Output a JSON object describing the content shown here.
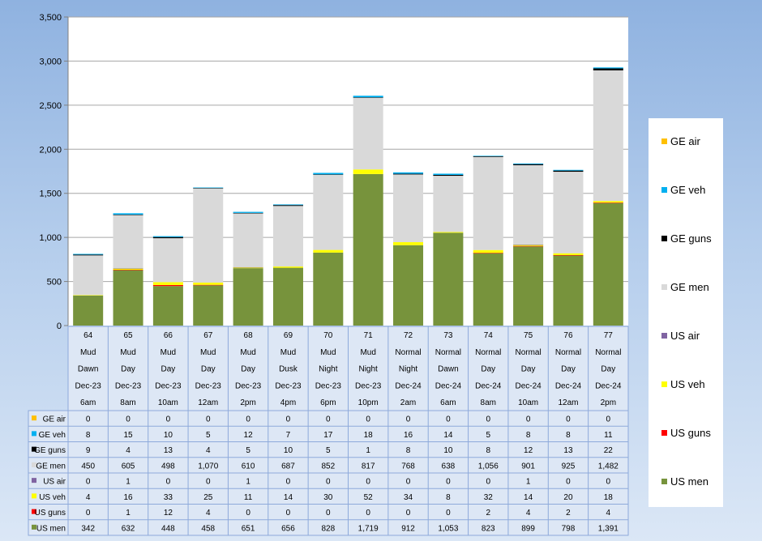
{
  "chart_data": {
    "type": "bar",
    "stacked": true,
    "ylim": [
      0,
      3500
    ],
    "yticks": [
      "0",
      "500",
      "1,000",
      "1,500",
      "2,000",
      "2,500",
      "3,000",
      "3,500"
    ],
    "grid": true,
    "legend_position": "right",
    "categories": [
      {
        "turn": "64",
        "ground": "Mud",
        "light": "Dawn",
        "date": "Dec-23",
        "time": "6am"
      },
      {
        "turn": "65",
        "ground": "Mud",
        "light": "Day",
        "date": "Dec-23",
        "time": "8am"
      },
      {
        "turn": "66",
        "ground": "Mud",
        "light": "Day",
        "date": "Dec-23",
        "time": "10am"
      },
      {
        "turn": "67",
        "ground": "Mud",
        "light": "Day",
        "date": "Dec-23",
        "time": "12am"
      },
      {
        "turn": "68",
        "ground": "Mud",
        "light": "Day",
        "date": "Dec-23",
        "time": "2pm"
      },
      {
        "turn": "69",
        "ground": "Mud",
        "light": "Dusk",
        "date": "Dec-23",
        "time": "4pm"
      },
      {
        "turn": "70",
        "ground": "Mud",
        "light": "Night",
        "date": "Dec-23",
        "time": "6pm"
      },
      {
        "turn": "71",
        "ground": "Mud",
        "light": "Night",
        "date": "Dec-23",
        "time": "10pm"
      },
      {
        "turn": "72",
        "ground": "Normal",
        "light": "Night",
        "date": "Dec-24",
        "time": "2am"
      },
      {
        "turn": "73",
        "ground": "Normal",
        "light": "Dawn",
        "date": "Dec-24",
        "time": "6am"
      },
      {
        "turn": "74",
        "ground": "Normal",
        "light": "Day",
        "date": "Dec-24",
        "time": "8am"
      },
      {
        "turn": "75",
        "ground": "Normal",
        "light": "Day",
        "date": "Dec-24",
        "time": "10am"
      },
      {
        "turn": "76",
        "ground": "Normal",
        "light": "Day",
        "date": "Dec-24",
        "time": "12am"
      },
      {
        "turn": "77",
        "ground": "Normal",
        "light": "Day",
        "date": "Dec-24",
        "time": "2pm"
      }
    ],
    "series": [
      {
        "name": "GE air",
        "color": "#ffc000",
        "values": [
          0,
          0,
          0,
          0,
          0,
          0,
          0,
          0,
          0,
          0,
          0,
          0,
          0,
          0
        ],
        "labels": [
          "0",
          "0",
          "0",
          "0",
          "0",
          "0",
          "0",
          "0",
          "0",
          "0",
          "0",
          "0",
          "0",
          "0"
        ]
      },
      {
        "name": "GE veh",
        "color": "#00b0f0",
        "values": [
          8,
          15,
          10,
          5,
          12,
          7,
          17,
          18,
          16,
          14,
          5,
          8,
          8,
          11
        ],
        "labels": [
          "8",
          "15",
          "10",
          "5",
          "12",
          "7",
          "17",
          "18",
          "16",
          "14",
          "5",
          "8",
          "8",
          "11"
        ]
      },
      {
        "name": "GE guns",
        "color": "#000000",
        "values": [
          9,
          4,
          13,
          4,
          5,
          10,
          5,
          1,
          8,
          10,
          8,
          12,
          13,
          22
        ],
        "labels": [
          "9",
          "4",
          "13",
          "4",
          "5",
          "10",
          "5",
          "1",
          "8",
          "10",
          "8",
          "12",
          "13",
          "22"
        ]
      },
      {
        "name": "GE men",
        "color": "#d9d9d9",
        "values": [
          450,
          605,
          498,
          1070,
          610,
          687,
          852,
          817,
          768,
          638,
          1056,
          901,
          925,
          1482
        ],
        "labels": [
          "450",
          "605",
          "498",
          "1,070",
          "610",
          "687",
          "852",
          "817",
          "768",
          "638",
          "1,056",
          "901",
          "925",
          "1,482"
        ]
      },
      {
        "name": "US air",
        "color": "#8064a2",
        "values": [
          0,
          1,
          0,
          0,
          1,
          0,
          0,
          0,
          0,
          0,
          0,
          1,
          0,
          0
        ],
        "labels": [
          "0",
          "1",
          "0",
          "0",
          "1",
          "0",
          "0",
          "0",
          "0",
          "0",
          "0",
          "1",
          "0",
          "0"
        ]
      },
      {
        "name": "US veh",
        "color": "#ffff00",
        "values": [
          4,
          16,
          33,
          25,
          11,
          14,
          30,
          52,
          34,
          8,
          32,
          14,
          20,
          18
        ],
        "labels": [
          "4",
          "16",
          "33",
          "25",
          "11",
          "14",
          "30",
          "52",
          "34",
          "8",
          "32",
          "14",
          "20",
          "18"
        ]
      },
      {
        "name": "US guns",
        "color": "#ff0000",
        "values": [
          0,
          1,
          12,
          4,
          0,
          0,
          0,
          0,
          0,
          0,
          2,
          4,
          2,
          4
        ],
        "labels": [
          "0",
          "1",
          "12",
          "4",
          "0",
          "0",
          "0",
          "0",
          "0",
          "0",
          "2",
          "4",
          "2",
          "4"
        ]
      },
      {
        "name": "US men",
        "color": "#77933c",
        "values": [
          342,
          632,
          448,
          458,
          651,
          656,
          828,
          1719,
          912,
          1053,
          823,
          899,
          798,
          1391
        ],
        "labels": [
          "342",
          "632",
          "448",
          "458",
          "651",
          "656",
          "828",
          "1,719",
          "912",
          "1,053",
          "823",
          "899",
          "798",
          "1,391"
        ]
      }
    ]
  }
}
